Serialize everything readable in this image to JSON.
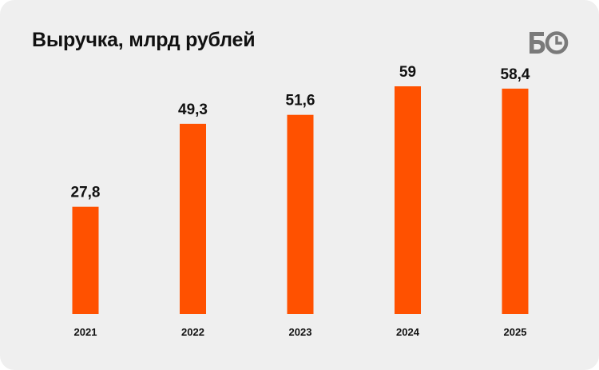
{
  "header": {
    "title": "Выручка, млрд рублей",
    "logo_icon": "bo-logo-icon"
  },
  "colors": {
    "background": "#efefef",
    "bar": "#ff5100",
    "text": "#111111",
    "logo": "#7a7a7a"
  },
  "chart_data": {
    "type": "bar",
    "title": "Выручка, млрд рублей",
    "categories": [
      "2021",
      "2022",
      "2023",
      "2024",
      "2025"
    ],
    "values": [
      27.8,
      49.3,
      51.6,
      59,
      58.4
    ],
    "value_labels": [
      "27,8",
      "49,3",
      "51,6",
      "59",
      "58,4"
    ],
    "xlabel": "",
    "ylabel": "",
    "ylim": [
      0,
      59
    ],
    "grid": false,
    "legend": "none"
  }
}
